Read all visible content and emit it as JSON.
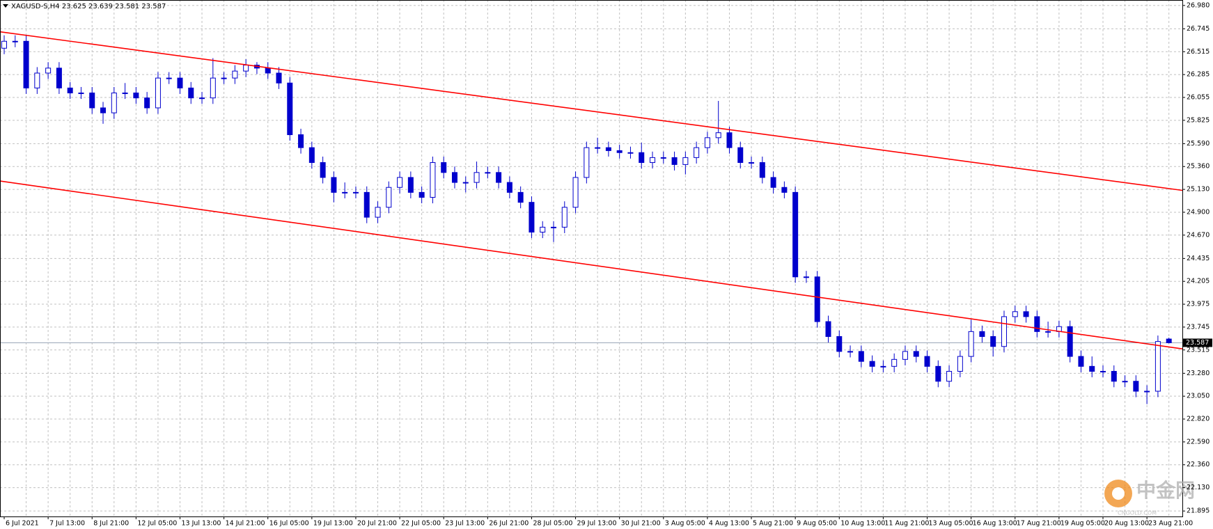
{
  "chart_data": {
    "type": "candlestick",
    "title": "XAGUSD-S,H4  23.625 23.639 23.581 23.587",
    "color": "#0000cd",
    "grid": true,
    "ylim": [
      21.84,
      27.035
    ],
    "yticks": [
      {
        "value": 26.98,
        "label": "26.980"
      },
      26.745,
      26.515,
      26.285,
      26.055,
      25.825,
      {
        "value": 25.59,
        "label": "25.590"
      },
      {
        "value": 25.36,
        "label": "25.360"
      },
      {
        "value": 25.13,
        "label": "25.130"
      },
      {
        "value": 24.9,
        "label": "24.900"
      },
      {
        "value": 24.67,
        "label": "24.670"
      },
      24.435,
      24.205,
      23.975,
      23.745,
      23.515,
      {
        "value": 23.28,
        "label": "23.280"
      },
      {
        "value": 23.05,
        "label": "23.050"
      },
      {
        "value": 22.82,
        "label": "22.820"
      },
      {
        "value": 22.59,
        "label": "22.590"
      },
      {
        "value": 22.36,
        "label": "22.360"
      },
      {
        "value": 22.13,
        "label": "22.130"
      },
      21.895
    ],
    "categories": [
      "6 Jul 2021",
      null,
      null,
      null,
      "7 Jul 13:00",
      null,
      null,
      null,
      "8 Jul 21:00",
      null,
      null,
      null,
      "12 Jul 05:00",
      null,
      null,
      null,
      "13 Jul 13:00",
      null,
      null,
      null,
      "14 Jul 21:00",
      null,
      null,
      null,
      "16 Jul 05:00",
      null,
      null,
      null,
      "19 Jul 13:00",
      null,
      null,
      null,
      "20 Jul 21:00",
      null,
      null,
      null,
      "22 Jul 05:00",
      null,
      null,
      null,
      "23 Jul 13:00",
      null,
      null,
      null,
      "26 Jul 21:00",
      null,
      null,
      null,
      "28 Jul 05:00",
      null,
      null,
      null,
      "29 Jul 13:00",
      null,
      null,
      null,
      "30 Jul 21:00",
      null,
      null,
      null,
      "3 Aug 05:00",
      null,
      null,
      null,
      "4 Aug 13:00",
      null,
      null,
      null,
      "5 Aug 21:00",
      null,
      null,
      null,
      "9 Aug 05:00",
      null,
      null,
      null,
      "10 Aug 13:00",
      null,
      null,
      null,
      "11 Aug 21:00",
      null,
      null,
      null,
      "13 Aug 05:00",
      null,
      null,
      null,
      "16 Aug 13:00",
      null,
      null,
      null,
      "17 Aug 21:00",
      null,
      null,
      null,
      "19 Aug 05:00",
      null,
      null,
      null,
      "20 Aug 13:00",
      null,
      null,
      null,
      "23 Aug 21:00",
      null,
      null
    ],
    "open": [
      26.55,
      26.62,
      26.62,
      26.15,
      26.3,
      26.35,
      26.15,
      26.1,
      26.1,
      25.95,
      25.9,
      26.1,
      26.1,
      26.05,
      25.95,
      26.25,
      26.25,
      26.15,
      26.05,
      26.05,
      26.25,
      26.25,
      26.32,
      26.38,
      26.35,
      26.3,
      26.2,
      25.68,
      25.55,
      25.4,
      25.25,
      25.1,
      25.1,
      25.1,
      24.85,
      24.95,
      25.15,
      25.25,
      25.1,
      25.05,
      25.4,
      25.3,
      25.2,
      25.2,
      25.3,
      25.3,
      25.2,
      25.1,
      25.0,
      24.7,
      24.75,
      24.75,
      24.95,
      25.25,
      25.55,
      25.55,
      25.52,
      25.5,
      25.5,
      25.4,
      25.45,
      25.45,
      25.38,
      25.45,
      25.55,
      25.65,
      25.7,
      25.55,
      25.4,
      25.4,
      25.25,
      25.15,
      25.1,
      24.25,
      24.25,
      23.8,
      23.65,
      23.5,
      23.5,
      23.4,
      23.35,
      23.35,
      23.42,
      23.5,
      23.45,
      23.35,
      23.2,
      23.3,
      23.45,
      23.7,
      23.65,
      23.55,
      23.85,
      23.9,
      23.85,
      23.7,
      23.7,
      23.75,
      23.45,
      23.35,
      23.3,
      23.3,
      23.2,
      23.2,
      23.1,
      23.1,
      23.625
    ],
    "high": [
      26.68,
      26.68,
      26.68,
      26.36,
      26.41,
      26.41,
      26.21,
      26.16,
      26.16,
      26.01,
      26.16,
      26.2,
      26.16,
      26.11,
      26.31,
      26.31,
      26.31,
      26.21,
      26.11,
      26.45,
      26.31,
      26.38,
      26.44,
      26.41,
      26.41,
      26.36,
      26.26,
      25.74,
      25.61,
      25.46,
      25.31,
      25.2,
      25.16,
      25.16,
      25.01,
      25.21,
      25.31,
      25.31,
      25.16,
      25.46,
      25.46,
      25.36,
      25.26,
      25.41,
      25.36,
      25.36,
      25.26,
      25.16,
      25.06,
      24.81,
      24.81,
      25.01,
      25.31,
      25.61,
      25.65,
      25.61,
      25.58,
      25.56,
      25.6,
      25.51,
      25.51,
      25.51,
      25.51,
      25.61,
      25.71,
      26.02,
      25.76,
      25.61,
      25.46,
      25.46,
      25.31,
      25.21,
      25.16,
      24.31,
      24.31,
      23.86,
      23.71,
      23.56,
      23.56,
      23.46,
      23.41,
      23.48,
      23.56,
      23.56,
      23.51,
      23.41,
      23.36,
      23.51,
      23.82,
      23.76,
      23.71,
      23.91,
      23.96,
      23.96,
      23.91,
      23.8,
      23.81,
      23.81,
      23.51,
      23.45,
      23.36,
      23.36,
      23.26,
      23.26,
      23.16,
      23.66,
      23.639
    ],
    "low": [
      26.49,
      26.56,
      26.09,
      26.09,
      26.24,
      26.09,
      26.04,
      26.04,
      25.89,
      25.79,
      25.84,
      26.04,
      25.99,
      25.89,
      25.89,
      26.19,
      26.09,
      25.99,
      25.99,
      25.99,
      26.19,
      26.19,
      26.26,
      26.29,
      26.24,
      26.14,
      25.62,
      25.49,
      25.34,
      25.19,
      25.0,
      25.04,
      25.04,
      24.79,
      24.79,
      24.89,
      25.09,
      25.04,
      24.99,
      24.99,
      25.24,
      25.14,
      25.1,
      25.14,
      25.24,
      25.14,
      25.04,
      24.94,
      24.64,
      24.64,
      24.6,
      24.69,
      24.89,
      25.19,
      25.49,
      25.46,
      25.44,
      25.44,
      25.34,
      25.34,
      25.39,
      25.32,
      25.28,
      25.39,
      25.49,
      25.59,
      25.49,
      25.34,
      25.34,
      25.19,
      25.09,
      25.04,
      24.19,
      24.19,
      23.74,
      23.59,
      23.44,
      23.44,
      23.34,
      23.29,
      23.29,
      23.29,
      23.36,
      23.39,
      23.29,
      23.14,
      23.14,
      23.24,
      23.39,
      23.59,
      23.45,
      23.49,
      23.79,
      23.79,
      23.64,
      23.64,
      23.64,
      23.39,
      23.29,
      23.24,
      23.24,
      23.14,
      23.14,
      23.04,
      22.97,
      23.04,
      23.581
    ],
    "close": [
      26.62,
      26.62,
      26.15,
      26.3,
      26.35,
      26.15,
      26.1,
      26.1,
      25.95,
      25.9,
      26.1,
      26.1,
      26.05,
      25.95,
      26.25,
      26.25,
      26.15,
      26.05,
      26.05,
      26.25,
      26.25,
      26.32,
      26.38,
      26.35,
      26.3,
      26.2,
      25.68,
      25.55,
      25.4,
      25.25,
      25.1,
      25.1,
      25.1,
      24.85,
      24.95,
      25.15,
      25.25,
      25.1,
      25.05,
      25.4,
      25.3,
      25.2,
      25.2,
      25.3,
      25.3,
      25.2,
      25.1,
      25.0,
      24.7,
      24.75,
      24.75,
      24.95,
      25.25,
      25.55,
      25.55,
      25.52,
      25.5,
      25.5,
      25.4,
      25.45,
      25.45,
      25.38,
      25.45,
      25.55,
      25.65,
      25.7,
      25.55,
      25.4,
      25.4,
      25.25,
      25.15,
      25.1,
      24.25,
      24.25,
      23.8,
      23.65,
      23.5,
      23.5,
      23.4,
      23.35,
      23.35,
      23.42,
      23.5,
      23.45,
      23.35,
      23.2,
      23.3,
      23.45,
      23.7,
      23.65,
      23.55,
      23.85,
      23.9,
      23.85,
      23.7,
      23.7,
      23.75,
      23.45,
      23.35,
      23.3,
      23.3,
      23.2,
      23.2,
      23.1,
      23.1,
      23.6,
      23.587
    ],
    "trendlines": [
      {
        "color": "#ff0000",
        "values": [
          26.715,
          25.12
        ]
      },
      {
        "color": "#ff0000",
        "values": [
          25.214,
          23.526
        ]
      }
    ],
    "price_line": 23.587,
    "watermark": {
      "text": "中金网",
      "subtext": "CNGOLD.COM"
    }
  }
}
